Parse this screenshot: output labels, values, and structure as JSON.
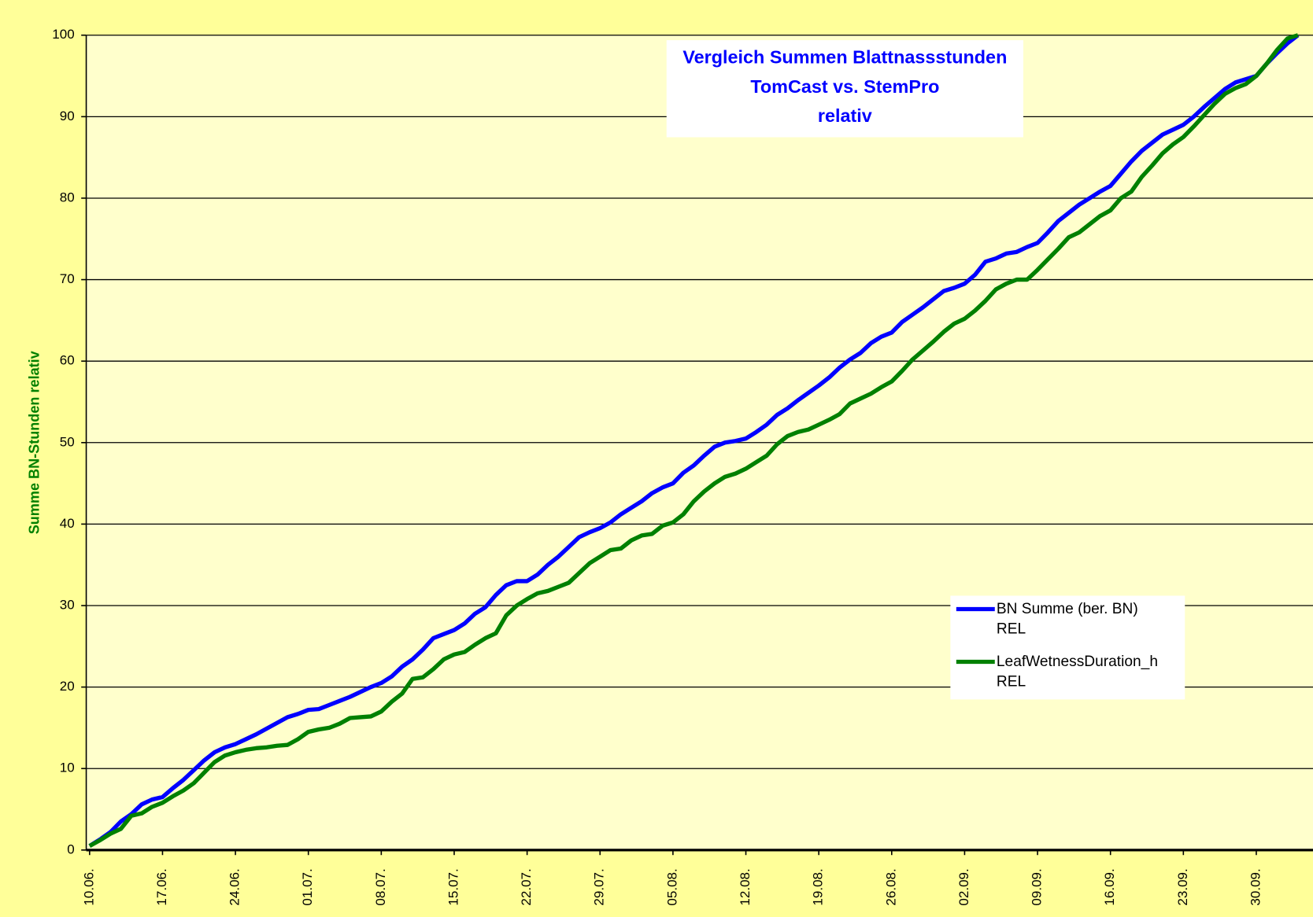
{
  "chart_data": {
    "type": "line",
    "title": [
      "Vergleich Summen Blattnassstunden",
      "TomCast vs. StemPro",
      "relativ"
    ],
    "y_label": "Summe BN-Stunden relativ",
    "categories": [
      "10.06.",
      null,
      null,
      null,
      null,
      null,
      null,
      "17.06.",
      null,
      null,
      null,
      null,
      null,
      null,
      "24.06.",
      null,
      null,
      null,
      null,
      null,
      null,
      "01.07.",
      null,
      null,
      null,
      null,
      null,
      null,
      "08.07.",
      null,
      null,
      null,
      null,
      null,
      null,
      "15.07.",
      null,
      null,
      null,
      null,
      null,
      null,
      "22.07.",
      null,
      null,
      null,
      null,
      null,
      null,
      "29.07.",
      null,
      null,
      null,
      null,
      null,
      null,
      "05.08.",
      null,
      null,
      null,
      null,
      null,
      null,
      "12.08.",
      null,
      null,
      null,
      null,
      null,
      null,
      "19.08.",
      null,
      null,
      null,
      null,
      null,
      null,
      "26.08.",
      null,
      null,
      null,
      null,
      null,
      null,
      "02.09.",
      null,
      null,
      null,
      null,
      null,
      null,
      "09.09.",
      null,
      null,
      null,
      null,
      null,
      null,
      "16.09.",
      null,
      null,
      null,
      null,
      null,
      null,
      "23.09.",
      null,
      null,
      null,
      null,
      null,
      null,
      "30.09.",
      null,
      null,
      null,
      null
    ],
    "series": [
      {
        "name": "BN Summe (ber. BN)\nREL",
        "color": "#0000ff",
        "values": [
          0.5,
          1.3,
          2.2,
          3.5,
          4.4,
          5.6,
          6.2,
          6.5,
          7.6,
          8.6,
          9.8,
          11.0,
          12.0,
          12.6,
          13.0,
          13.6,
          14.2,
          14.9,
          15.6,
          16.3,
          16.7,
          17.2,
          17.3,
          17.8,
          18.3,
          18.8,
          19.4,
          20.0,
          20.5,
          21.3,
          22.5,
          23.4,
          24.6,
          26.0,
          26.5,
          27.0,
          27.8,
          29.0,
          29.8,
          31.3,
          32.5,
          33.0,
          33.0,
          33.8,
          35.0,
          36.0,
          37.2,
          38.4,
          39.0,
          39.5,
          40.2,
          41.2,
          42.0,
          42.8,
          43.8,
          44.5,
          45.0,
          46.3,
          47.2,
          48.4,
          49.5,
          50.0,
          50.2,
          50.5,
          51.3,
          52.2,
          53.4,
          54.2,
          55.2,
          56.1,
          57.0,
          58.0,
          59.2,
          60.2,
          61.0,
          62.2,
          63.0,
          63.5,
          64.8,
          65.7,
          66.6,
          67.6,
          68.6,
          69.0,
          69.5,
          70.6,
          72.2,
          72.6,
          73.2,
          73.4,
          74.0,
          74.5,
          75.8,
          77.2,
          78.2,
          79.2,
          80.0,
          80.8,
          81.5,
          83.0,
          84.5,
          85.8,
          86.8,
          87.8,
          88.4,
          89.0,
          90.0,
          91.2,
          92.3,
          93.4,
          94.2,
          94.6,
          95.0,
          96.5,
          97.8,
          99.0,
          100
        ]
      },
      {
        "name": "LeafWetnessDuration_h\nREL",
        "color": "#008000",
        "values": [
          0.5,
          1.2,
          2.0,
          2.6,
          4.2,
          4.5,
          5.3,
          5.8,
          6.6,
          7.3,
          8.2,
          9.5,
          10.8,
          11.6,
          12.0,
          12.3,
          12.5,
          12.6,
          12.8,
          12.9,
          13.6,
          14.5,
          14.8,
          15.0,
          15.5,
          16.2,
          16.3,
          16.4,
          17.0,
          18.2,
          19.2,
          21.0,
          21.2,
          22.2,
          23.4,
          24.0,
          24.3,
          25.2,
          26.0,
          26.6,
          28.8,
          30.0,
          30.8,
          31.5,
          31.8,
          32.3,
          32.8,
          34.0,
          35.2,
          36.0,
          36.8,
          37.0,
          38.0,
          38.6,
          38.8,
          39.8,
          40.2,
          41.2,
          42.8,
          44.0,
          45.0,
          45.8,
          46.2,
          46.8,
          47.6,
          48.4,
          49.8,
          50.8,
          51.3,
          51.6,
          52.2,
          52.8,
          53.5,
          54.8,
          55.4,
          56.0,
          56.8,
          57.5,
          58.8,
          60.2,
          61.3,
          62.4,
          63.6,
          64.6,
          65.2,
          66.2,
          67.4,
          68.8,
          69.5,
          70.0,
          70.0,
          71.2,
          72.5,
          73.8,
          75.2,
          75.8,
          76.8,
          77.8,
          78.5,
          80.0,
          80.8,
          82.6,
          84.0,
          85.5,
          86.6,
          87.5,
          88.8,
          90.2,
          91.6,
          92.8,
          93.5,
          94.0,
          95.0,
          96.5,
          98.2,
          99.6,
          100
        ]
      }
    ],
    "ylim": [
      0,
      100
    ],
    "yticks": [
      0,
      10,
      20,
      30,
      40,
      50,
      60,
      70,
      80,
      90,
      100
    ],
    "grid": true
  }
}
